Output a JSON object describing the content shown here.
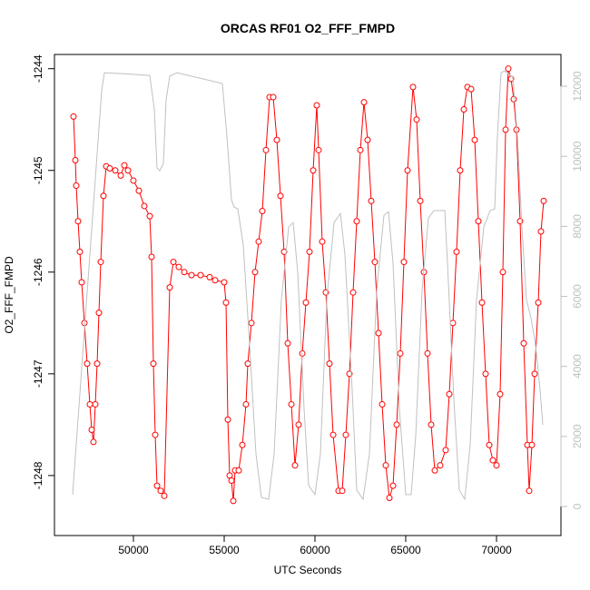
{
  "chart_data": {
    "type": "line",
    "title": "ORCAS RF01 O2_FFF_FMPD",
    "xlabel": "UTC Seconds",
    "ylabel": "O2_FFF_FMPD",
    "xlim": [
      45650,
      73550
    ],
    "xticks": [
      50000,
      55000,
      60000,
      65000,
      70000
    ],
    "ylim": [
      -1248.59,
      -1243.86
    ],
    "yticks": [
      -1248,
      -1247,
      -1246,
      -1245,
      -1244
    ],
    "y2lim": [
      -830,
      12910
    ],
    "y2ticks": [
      0,
      2000,
      4000,
      6000,
      8000,
      10000,
      12000
    ],
    "series": [
      {
        "color": "#ff0000",
        "marker": "circle",
        "x": [
          46700,
          46800,
          46850,
          46950,
          47050,
          47150,
          47300,
          47450,
          47600,
          47700,
          47800,
          47900,
          48000,
          48100,
          48200,
          48350,
          48500,
          48700,
          49000,
          49300,
          49500,
          49700,
          50000,
          50300,
          50600,
          50900,
          51000,
          51100,
          51200,
          51300,
          51500,
          51700,
          52000,
          52200,
          52500,
          52800,
          53200,
          53700,
          54200,
          54500,
          55000,
          55100,
          55200,
          55300,
          55400,
          55500,
          55600,
          55800,
          56000,
          56200,
          56300,
          56500,
          56700,
          56900,
          57100,
          57300,
          57500,
          57700,
          57900,
          58100,
          58300,
          58500,
          58700,
          58900,
          59100,
          59300,
          59500,
          59700,
          59900,
          60100,
          60200,
          60400,
          60600,
          60800,
          61000,
          61300,
          61500,
          61700,
          61900,
          62100,
          62300,
          62500,
          62700,
          62900,
          63100,
          63300,
          63500,
          63700,
          63900,
          64100,
          64300,
          64500,
          64700,
          64900,
          65100,
          65400,
          65600,
          65800,
          66000,
          66200,
          66400,
          66600,
          66900,
          67200,
          67400,
          67600,
          67800,
          68000,
          68200,
          68400,
          68600,
          68800,
          69000,
          69200,
          69400,
          69600,
          69800,
          70000,
          70200,
          70350,
          70500,
          70650,
          70800,
          70950,
          71100,
          71300,
          71500,
          71700,
          71800,
          71950,
          72100,
          72300,
          72450,
          72600
        ],
        "values": [
          -1244.47,
          -1244.9,
          -1245.15,
          -1245.5,
          -1245.8,
          -1246.1,
          -1246.5,
          -1246.9,
          -1247.3,
          -1247.55,
          -1247.67,
          -1247.3,
          -1246.9,
          -1246.4,
          -1245.9,
          -1245.25,
          -1244.96,
          -1244.98,
          -1245.0,
          -1245.05,
          -1244.95,
          -1245.0,
          -1245.1,
          -1245.2,
          -1245.35,
          -1245.45,
          -1245.85,
          -1246.9,
          -1247.6,
          -1248.1,
          -1248.15,
          -1248.2,
          -1246.15,
          -1245.9,
          -1245.95,
          -1246.0,
          -1246.03,
          -1246.03,
          -1246.05,
          -1246.08,
          -1246.1,
          -1246.3,
          -1247.45,
          -1248.0,
          -1248.05,
          -1248.25,
          -1247.95,
          -1247.95,
          -1247.7,
          -1247.3,
          -1246.9,
          -1246.5,
          -1246.0,
          -1245.7,
          -1245.4,
          -1244.8,
          -1244.28,
          -1244.28,
          -1244.7,
          -1245.25,
          -1245.8,
          -1246.7,
          -1247.3,
          -1247.9,
          -1247.5,
          -1246.8,
          -1246.3,
          -1245.8,
          -1245.0,
          -1244.36,
          -1244.8,
          -1245.7,
          -1246.2,
          -1246.9,
          -1247.6,
          -1248.15,
          -1248.15,
          -1247.6,
          -1247.0,
          -1246.2,
          -1245.5,
          -1244.8,
          -1244.33,
          -1244.7,
          -1245.3,
          -1245.9,
          -1246.6,
          -1247.3,
          -1247.9,
          -1248.22,
          -1248.1,
          -1247.5,
          -1246.8,
          -1245.9,
          -1245.0,
          -1244.18,
          -1244.5,
          -1245.3,
          -1246.0,
          -1246.8,
          -1247.5,
          -1247.95,
          -1247.9,
          -1247.75,
          -1247.2,
          -1246.5,
          -1245.8,
          -1245.0,
          -1244.4,
          -1244.18,
          -1244.2,
          -1244.7,
          -1245.5,
          -1246.3,
          -1247.0,
          -1247.7,
          -1247.85,
          -1247.9,
          -1247.2,
          -1246.0,
          -1244.6,
          -1244.0,
          -1244.1,
          -1244.3,
          -1244.6,
          -1245.5,
          -1246.7,
          -1247.7,
          -1248.15,
          -1247.7,
          -1247.0,
          -1246.3,
          -1245.6,
          -1245.3
        ]
      },
      {
        "color": "#c0c0c0",
        "axis": "y2",
        "x": [
          46650,
          48250,
          48400,
          49800,
          50900,
          51150,
          51300,
          51450,
          51650,
          51800,
          52000,
          52400,
          54900,
          55150,
          55400,
          55550,
          55750,
          56050,
          56400,
          56750,
          57050,
          57450,
          57750,
          58150,
          58550,
          58800,
          59050,
          59400,
          59650,
          60000,
          60300,
          60650,
          61050,
          61400,
          61650,
          62050,
          62300,
          62650,
          63000,
          63400,
          63800,
          64050,
          64300,
          64650,
          65000,
          65300,
          65550,
          65900,
          66250,
          66550,
          67150,
          67300,
          67650,
          67950,
          68250,
          68550,
          68900,
          69300,
          69650,
          69900,
          70050,
          70250,
          70450,
          70900,
          71150,
          71400,
          71650,
          71900,
          72150,
          72400,
          72550
        ],
        "values": [
          337,
          11870,
          12390,
          12350,
          12310,
          11350,
          9670,
          9590,
          9800,
          11610,
          12290,
          12390,
          12080,
          10575,
          8760,
          8550,
          8500,
          7465,
          4610,
          1500,
          260,
          207,
          1500,
          5910,
          7980,
          8110,
          6690,
          2800,
          600,
          340,
          1500,
          5910,
          8110,
          8370,
          7200,
          3320,
          470,
          207,
          1500,
          6170,
          8320,
          8420,
          6950,
          2800,
          340,
          340,
          2020,
          6170,
          8240,
          8450,
          8450,
          6950,
          3060,
          470,
          207,
          1760,
          5910,
          7980,
          8450,
          8500,
          10575,
          12390,
          12440,
          12260,
          10575,
          7980,
          5910,
          5390,
          4610,
          3320,
          2330
        ]
      }
    ]
  }
}
